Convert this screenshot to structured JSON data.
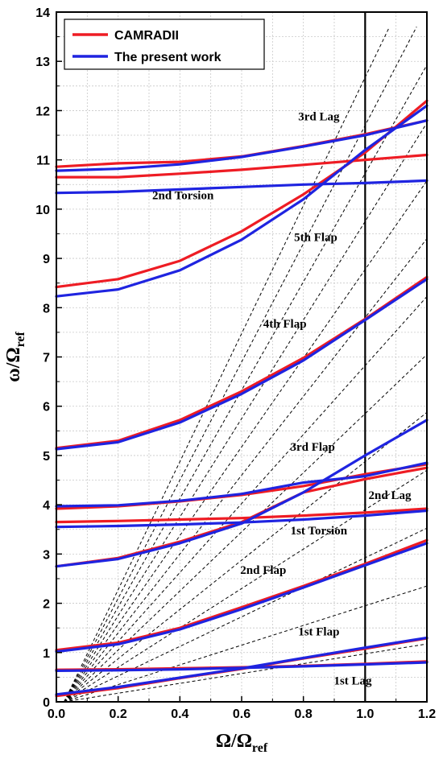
{
  "chart_data": {
    "type": "line",
    "xlabel": {
      "main": "Ω/Ω",
      "sub": "ref"
    },
    "ylabel": {
      "main": "ω/Ω",
      "sub": "ref"
    },
    "xlim": [
      0,
      1.2
    ],
    "ylim": [
      0,
      14
    ],
    "xticks": [
      "0.0",
      "0.2",
      "0.4",
      "0.6",
      "0.8",
      "1.0",
      "1.2"
    ],
    "yticks": [
      "0",
      "1",
      "2",
      "3",
      "4",
      "5",
      "6",
      "7",
      "8",
      "9",
      "10",
      "11",
      "12",
      "13",
      "14"
    ],
    "grid": true,
    "legend_position": "top-left",
    "vertical_reference_x": 1.0,
    "per_rev_slopes": [
      1,
      2,
      3,
      4,
      5,
      6,
      7,
      8,
      9,
      10,
      11,
      12,
      13
    ],
    "colors": {
      "camradii": "#ee1c24",
      "present": "#1f24e0",
      "grid": "#c8c8c8"
    },
    "series": [
      {
        "name": "CAMRADII",
        "curves": [
          {
            "mode": "1st Lag",
            "x": [
              0,
              0.2,
              0.4,
              0.6,
              0.8,
              1.0,
              1.2
            ],
            "y": [
              0.65,
              0.66,
              0.68,
              0.7,
              0.73,
              0.77,
              0.82
            ]
          },
          {
            "mode": "1st Flap",
            "x": [
              0,
              0.2,
              0.4,
              0.6,
              0.8,
              1.0,
              1.2
            ],
            "y": [
              0.12,
              0.28,
              0.48,
              0.67,
              0.88,
              1.08,
              1.29
            ]
          },
          {
            "mode": "2nd Flap",
            "x": [
              0,
              0.2,
              0.4,
              0.6,
              0.8,
              1.0,
              1.2
            ],
            "y": [
              1.05,
              1.2,
              1.5,
              1.92,
              2.35,
              2.8,
              3.28
            ]
          },
          {
            "mode": "1st Torsion",
            "x": [
              0,
              0.2,
              0.4,
              0.6,
              0.8,
              1.0,
              1.2
            ],
            "y": [
              2.75,
              2.92,
              3.25,
              3.65,
              4.25,
              4.52,
              4.75
            ]
          },
          {
            "mode": "2nd Lag",
            "x": [
              0,
              0.2,
              0.4,
              0.6,
              0.8,
              1.0,
              1.2
            ],
            "y": [
              3.65,
              3.67,
              3.7,
              3.73,
              3.78,
              3.84,
              3.92
            ]
          },
          {
            "mode": "3rd Flap",
            "x": [
              0,
              0.2,
              0.4,
              0.6,
              0.8,
              1.0,
              1.2
            ],
            "y": [
              3.92,
              3.97,
              4.07,
              4.2,
              4.38,
              4.62,
              4.82
            ]
          },
          {
            "mode": "3rd Flap (upper)",
            "x": [
              0,
              0.2,
              0.4,
              0.6,
              0.8,
              1.0,
              1.2
            ],
            "y": [
              5.15,
              5.3,
              5.72,
              6.3,
              6.98,
              7.77,
              8.62
            ]
          },
          {
            "mode": "4th Flap",
            "x": [
              0,
              0.2,
              0.4,
              0.6,
              0.8,
              1.0,
              1.2
            ],
            "y": [
              8.42,
              8.58,
              8.95,
              9.55,
              10.3,
              11.15,
              12.2
            ]
          },
          {
            "mode": "2nd Torsion",
            "x": [
              0,
              0.2,
              0.4,
              0.6,
              0.8,
              1.0,
              1.2
            ],
            "y": [
              10.65,
              10.65,
              10.72,
              10.8,
              10.9,
              11.0,
              11.1
            ]
          },
          {
            "mode": "3rd Lag",
            "x": [
              0,
              0.2,
              0.4,
              0.6,
              0.8,
              1.0,
              1.2
            ],
            "y": [
              10.86,
              10.93,
              10.96,
              11.07,
              11.28,
              11.52,
              11.8
            ]
          }
        ]
      },
      {
        "name": "The present work",
        "curves": [
          {
            "mode": "1st Lag",
            "x": [
              0,
              0.2,
              0.4,
              0.6,
              0.8,
              1.0,
              1.2
            ],
            "y": [
              0.63,
              0.64,
              0.66,
              0.69,
              0.72,
              0.76,
              0.8
            ]
          },
          {
            "mode": "1st Flap",
            "x": [
              0,
              0.2,
              0.4,
              0.6,
              0.8,
              1.0,
              1.2
            ],
            "y": [
              0.15,
              0.3,
              0.49,
              0.68,
              0.89,
              1.1,
              1.3
            ]
          },
          {
            "mode": "2nd Flap",
            "x": [
              0,
              0.2,
              0.4,
              0.6,
              0.8,
              1.0,
              1.2
            ],
            "y": [
              1.02,
              1.17,
              1.47,
              1.88,
              2.32,
              2.77,
              3.22
            ]
          },
          {
            "mode": "1st Torsion",
            "x": [
              0,
              0.2,
              0.4,
              0.6,
              0.8,
              1.0,
              1.2
            ],
            "y": [
              3.55,
              3.57,
              3.6,
              3.64,
              3.7,
              3.78,
              3.88
            ]
          },
          {
            "mode": "2nd Lag",
            "x": [
              0,
              0.2,
              0.4,
              0.6,
              0.8,
              1.0,
              1.2
            ],
            "y": [
              2.75,
              2.9,
              3.22,
              3.62,
              4.25,
              5.0,
              5.72
            ]
          },
          {
            "mode": "3rd Flap",
            "x": [
              0,
              0.2,
              0.4,
              0.6,
              0.8,
              1.0,
              1.2
            ],
            "y": [
              3.97,
              3.99,
              4.08,
              4.22,
              4.45,
              4.58,
              4.85
            ]
          },
          {
            "mode": "3rd Flap (upper)",
            "x": [
              0,
              0.2,
              0.4,
              0.6,
              0.8,
              1.0,
              1.2
            ],
            "y": [
              5.13,
              5.27,
              5.67,
              6.25,
              6.93,
              7.75,
              8.58
            ]
          },
          {
            "mode": "4th Flap",
            "x": [
              0,
              0.2,
              0.4,
              0.6,
              0.8,
              1.0,
              1.2
            ],
            "y": [
              8.23,
              8.37,
              8.76,
              9.38,
              10.2,
              11.2,
              12.1
            ]
          },
          {
            "mode": "2nd Torsion",
            "x": [
              0,
              0.2,
              0.4,
              0.6,
              0.8,
              1.0,
              1.2
            ],
            "y": [
              10.33,
              10.35,
              10.4,
              10.45,
              10.5,
              10.53,
              10.58
            ]
          },
          {
            "mode": "3rd Lag",
            "x": [
              0,
              0.2,
              0.4,
              0.6,
              0.8,
              1.0,
              1.2
            ],
            "y": [
              10.78,
              10.82,
              10.91,
              11.06,
              11.27,
              11.5,
              11.8
            ]
          }
        ]
      }
    ],
    "annotations": [
      {
        "text": "3rd Lag",
        "x": 0.85,
        "y": 11.8
      },
      {
        "text": "2nd Torsion",
        "x": 0.41,
        "y": 10.2
      },
      {
        "text": "5th Flap",
        "x": 0.84,
        "y": 9.35
      },
      {
        "text": "4th Flap",
        "x": 0.74,
        "y": 7.6
      },
      {
        "text": "3rd Flap",
        "x": 0.83,
        "y": 5.1
      },
      {
        "text": "2nd Lag",
        "x": 1.08,
        "y": 4.12
      },
      {
        "text": "1st Torsion",
        "x": 0.85,
        "y": 3.4
      },
      {
        "text": "2nd Flap",
        "x": 0.67,
        "y": 2.6
      },
      {
        "text": "1st Flap",
        "x": 0.85,
        "y": 1.35
      },
      {
        "text": "1st Lag",
        "x": 0.96,
        "y": 0.35
      }
    ]
  }
}
